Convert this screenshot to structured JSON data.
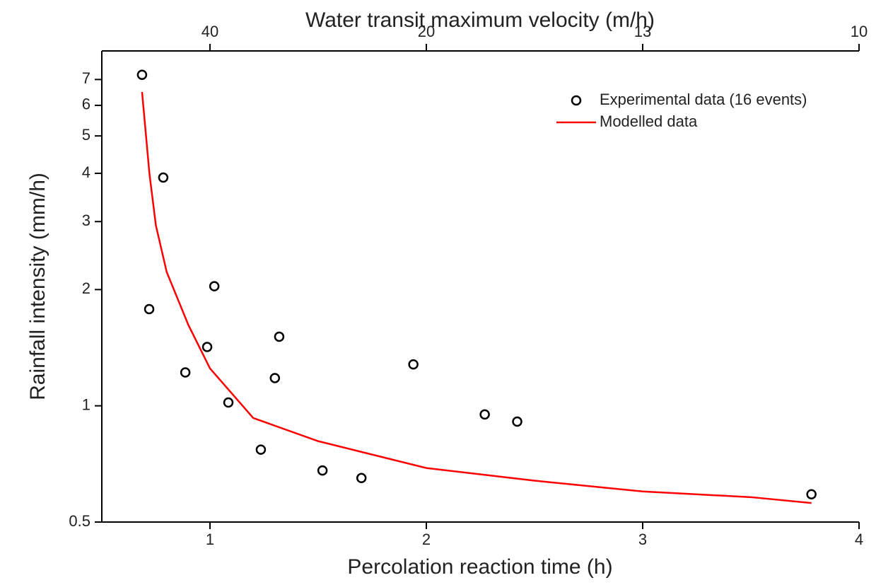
{
  "chart_data": {
    "type": "scatter",
    "x2_label": "Water transit maximum velocity (m/h)",
    "x_label": "Percolation reaction time (h)",
    "y_label": "Rainfall intensity (mm/h)",
    "xlim": [
      0.5,
      4
    ],
    "xticks": [
      1,
      2,
      3,
      4
    ],
    "x2ticks": [
      {
        "value": 1,
        "label": "40"
      },
      {
        "value": 2,
        "label": "20"
      },
      {
        "value": 3,
        "label": "13"
      },
      {
        "value": 4,
        "label": "10"
      }
    ],
    "ylim": [
      0.5,
      8.3
    ],
    "log_y": true,
    "yticks": [
      0.5,
      1,
      2,
      3,
      4,
      5,
      6,
      7
    ],
    "legend": "upper right",
    "series": [
      {
        "name": "Experimental data (16 events)",
        "type": "scatter",
        "color": "#000000",
        "x": [
          0.686,
          0.784,
          0.719,
          1.02,
          0.886,
          0.987,
          1.32,
          1.3,
          1.085,
          1.235,
          1.52,
          1.7,
          1.94,
          2.27,
          2.42,
          3.78
        ],
        "values": [
          7.2,
          3.9,
          1.78,
          2.04,
          1.22,
          1.42,
          1.51,
          1.18,
          1.02,
          0.77,
          0.68,
          0.65,
          1.28,
          0.95,
          0.91,
          0.59
        ]
      },
      {
        "name": "Modelled data",
        "type": "line",
        "color": "#ff0000",
        "x": [
          0.686,
          0.72,
          0.75,
          0.8,
          0.9,
          1.0,
          1.2,
          1.5,
          2.0,
          2.5,
          3.0,
          3.5,
          3.78
        ],
        "values": [
          6.5,
          4.0,
          2.93,
          2.22,
          1.62,
          1.25,
          0.93,
          0.81,
          0.69,
          0.64,
          0.6,
          0.58,
          0.56
        ]
      }
    ]
  }
}
